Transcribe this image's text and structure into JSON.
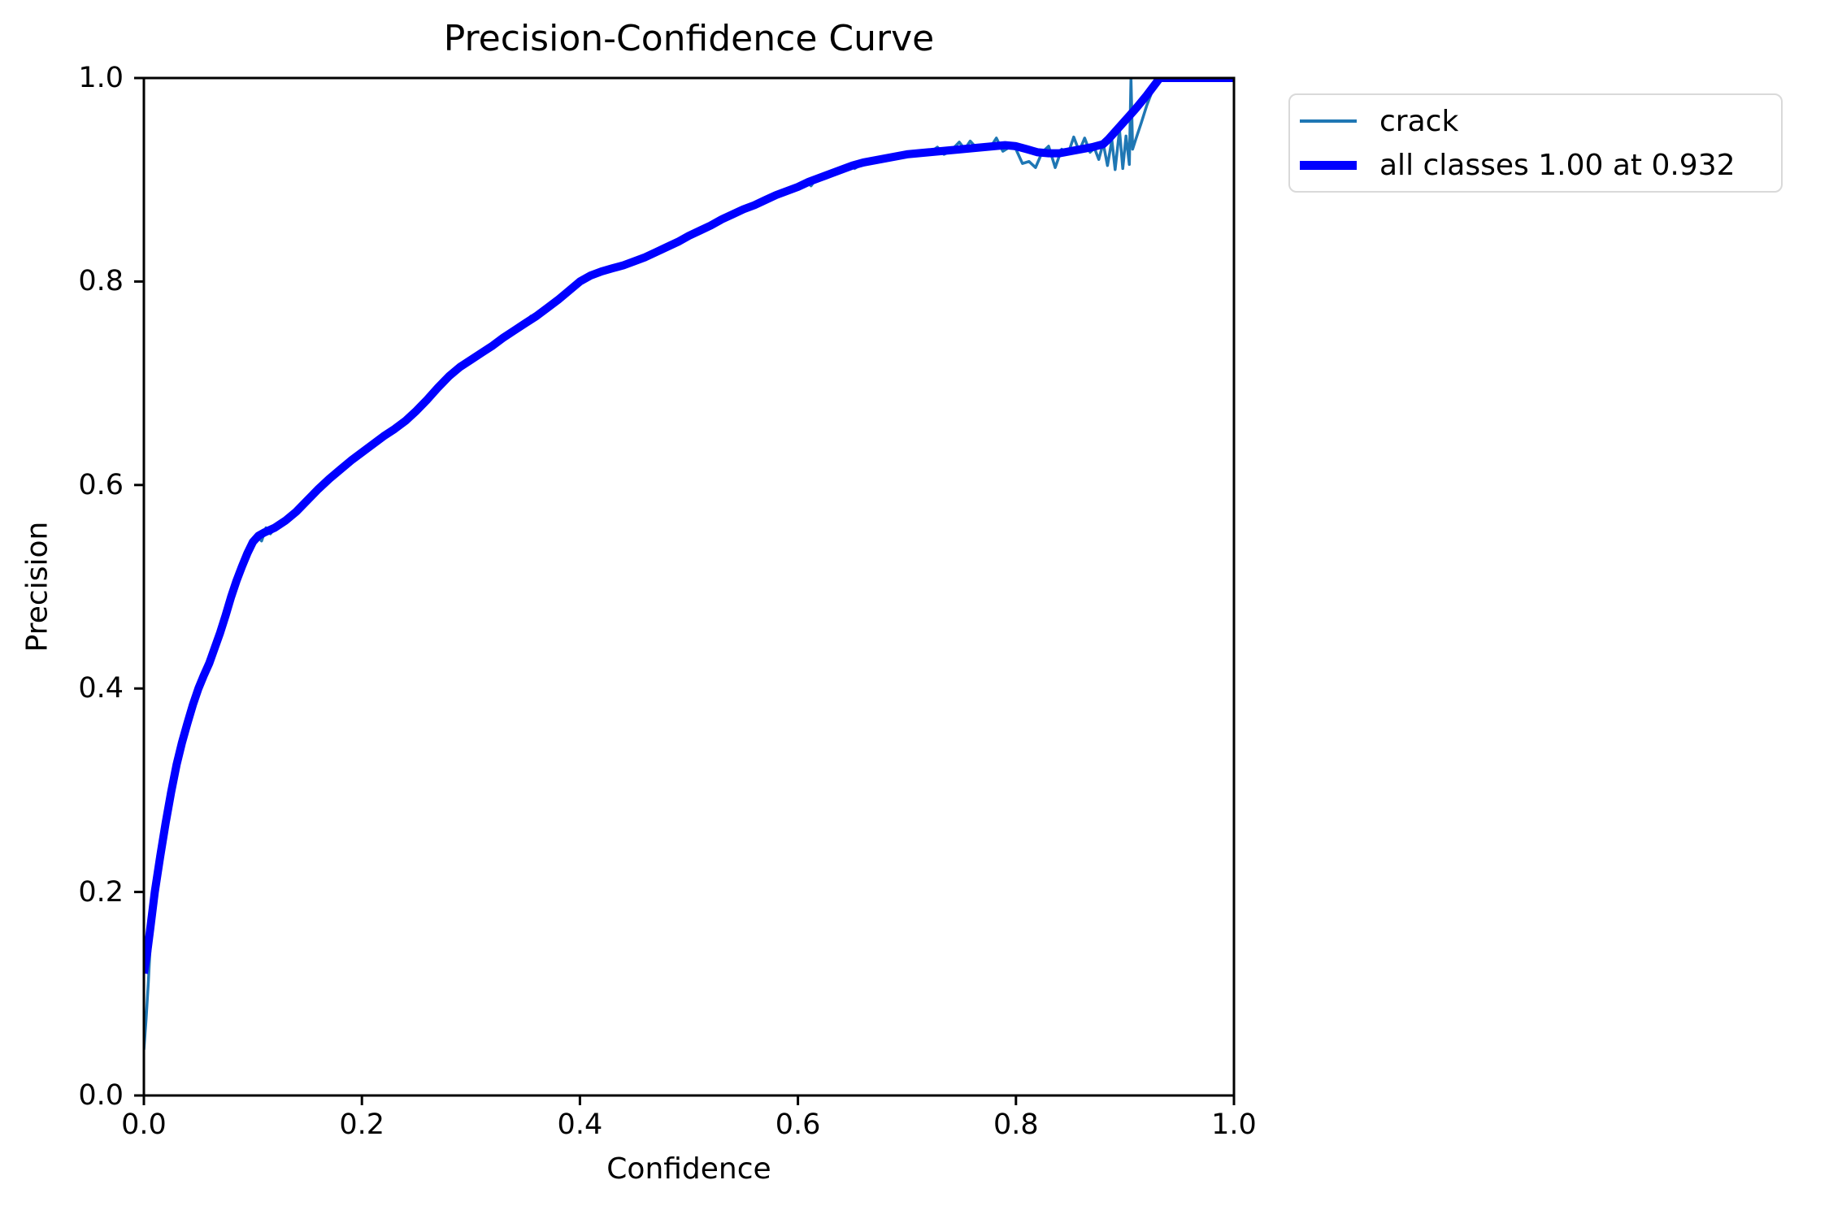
{
  "chart_data": {
    "type": "line",
    "title": "Precision-Confidence Curve",
    "xlabel": "Confidence",
    "ylabel": "Precision",
    "xlim": [
      0.0,
      1.0
    ],
    "ylim": [
      0.0,
      1.0
    ],
    "xticks": [
      "0.0",
      "0.2",
      "0.4",
      "0.6",
      "0.8",
      "1.0"
    ],
    "yticks": [
      "0.0",
      "0.2",
      "0.4",
      "0.6",
      "0.8",
      "1.0"
    ],
    "grid": false,
    "legend_position": "outside-upper-right",
    "axis_color": "#000000",
    "series": [
      {
        "name": "crack",
        "color": "#1f77b4",
        "linewidth": 3.5,
        "points": [
          [
            0.0,
            0.045
          ],
          [
            0.002,
            0.075
          ],
          [
            0.004,
            0.11
          ],
          [
            0.006,
            0.15
          ],
          [
            0.01,
            0.197
          ],
          [
            0.015,
            0.232
          ],
          [
            0.02,
            0.265
          ],
          [
            0.025,
            0.296
          ],
          [
            0.03,
            0.323
          ],
          [
            0.035,
            0.345
          ],
          [
            0.04,
            0.364
          ],
          [
            0.045,
            0.382
          ],
          [
            0.05,
            0.398
          ],
          [
            0.055,
            0.411
          ],
          [
            0.06,
            0.424
          ],
          [
            0.065,
            0.438
          ],
          [
            0.07,
            0.453
          ],
          [
            0.075,
            0.47
          ],
          [
            0.08,
            0.488
          ],
          [
            0.085,
            0.504
          ],
          [
            0.09,
            0.518
          ],
          [
            0.095,
            0.531
          ],
          [
            0.1,
            0.542
          ],
          [
            0.104,
            0.55
          ],
          [
            0.108,
            0.545
          ],
          [
            0.112,
            0.558
          ],
          [
            0.116,
            0.552
          ],
          [
            0.12,
            0.557
          ],
          [
            0.13,
            0.564
          ],
          [
            0.14,
            0.573
          ],
          [
            0.15,
            0.584
          ],
          [
            0.16,
            0.595
          ],
          [
            0.17,
            0.605
          ],
          [
            0.18,
            0.614
          ],
          [
            0.19,
            0.623
          ],
          [
            0.2,
            0.631
          ],
          [
            0.21,
            0.639
          ],
          [
            0.22,
            0.647
          ],
          [
            0.23,
            0.654
          ],
          [
            0.24,
            0.662
          ],
          [
            0.25,
            0.672
          ],
          [
            0.26,
            0.683
          ],
          [
            0.27,
            0.695
          ],
          [
            0.28,
            0.706
          ],
          [
            0.29,
            0.715
          ],
          [
            0.3,
            0.722
          ],
          [
            0.31,
            0.729
          ],
          [
            0.32,
            0.736
          ],
          [
            0.33,
            0.744
          ],
          [
            0.34,
            0.751
          ],
          [
            0.35,
            0.76
          ],
          [
            0.355,
            0.766
          ],
          [
            0.36,
            0.763
          ],
          [
            0.365,
            0.769
          ],
          [
            0.37,
            0.773
          ],
          [
            0.38,
            0.781
          ],
          [
            0.39,
            0.79
          ],
          [
            0.4,
            0.799
          ],
          [
            0.41,
            0.805
          ],
          [
            0.42,
            0.809
          ],
          [
            0.43,
            0.812
          ],
          [
            0.44,
            0.815
          ],
          [
            0.45,
            0.819
          ],
          [
            0.46,
            0.823
          ],
          [
            0.47,
            0.828
          ],
          [
            0.48,
            0.833
          ],
          [
            0.49,
            0.838
          ],
          [
            0.5,
            0.844
          ],
          [
            0.51,
            0.849
          ],
          [
            0.52,
            0.854
          ],
          [
            0.53,
            0.86
          ],
          [
            0.54,
            0.865
          ],
          [
            0.55,
            0.87
          ],
          [
            0.56,
            0.874
          ],
          [
            0.57,
            0.879
          ],
          [
            0.58,
            0.884
          ],
          [
            0.59,
            0.888
          ],
          [
            0.6,
            0.892
          ],
          [
            0.608,
            0.899
          ],
          [
            0.612,
            0.894
          ],
          [
            0.616,
            0.9
          ],
          [
            0.62,
            0.901
          ],
          [
            0.63,
            0.905
          ],
          [
            0.64,
            0.909
          ],
          [
            0.648,
            0.915
          ],
          [
            0.652,
            0.911
          ],
          [
            0.66,
            0.916
          ],
          [
            0.67,
            0.918
          ],
          [
            0.68,
            0.92
          ],
          [
            0.69,
            0.922
          ],
          [
            0.7,
            0.924
          ],
          [
            0.71,
            0.925
          ],
          [
            0.72,
            0.926
          ],
          [
            0.728,
            0.932
          ],
          [
            0.734,
            0.925
          ],
          [
            0.74,
            0.928
          ],
          [
            0.748,
            0.937
          ],
          [
            0.753,
            0.93
          ],
          [
            0.758,
            0.938
          ],
          [
            0.764,
            0.931
          ],
          [
            0.77,
            0.933
          ],
          [
            0.776,
            0.931
          ],
          [
            0.782,
            0.941
          ],
          [
            0.788,
            0.928
          ],
          [
            0.794,
            0.932
          ],
          [
            0.8,
            0.93
          ],
          [
            0.806,
            0.916
          ],
          [
            0.812,
            0.918
          ],
          [
            0.818,
            0.912
          ],
          [
            0.824,
            0.927
          ],
          [
            0.83,
            0.933
          ],
          [
            0.836,
            0.912
          ],
          [
            0.842,
            0.93
          ],
          [
            0.848,
            0.926
          ],
          [
            0.853,
            0.942
          ],
          [
            0.858,
            0.928
          ],
          [
            0.863,
            0.941
          ],
          [
            0.868,
            0.927
          ],
          [
            0.872,
            0.931
          ],
          [
            0.876,
            0.92
          ],
          [
            0.88,
            0.936
          ],
          [
            0.884,
            0.914
          ],
          [
            0.888,
            0.939
          ],
          [
            0.891,
            0.91
          ],
          [
            0.895,
            0.949
          ],
          [
            0.898,
            0.911
          ],
          [
            0.901,
            0.943
          ],
          [
            0.904,
            0.915
          ],
          [
            0.9055,
            1.0
          ],
          [
            0.907,
            0.93
          ],
          [
            0.91,
            0.94
          ],
          [
            0.915,
            0.956
          ],
          [
            0.92,
            0.973
          ],
          [
            0.926,
            0.99
          ],
          [
            0.932,
            1.0
          ],
          [
            1.0,
            1.0
          ]
        ]
      },
      {
        "name": "all classes 1.00 at 0.932",
        "color": "#0000ff",
        "linewidth": 10,
        "points": [
          [
            0.0,
            0.12
          ],
          [
            0.003,
            0.14
          ],
          [
            0.006,
            0.165
          ],
          [
            0.01,
            0.2
          ],
          [
            0.015,
            0.235
          ],
          [
            0.02,
            0.268
          ],
          [
            0.025,
            0.298
          ],
          [
            0.03,
            0.325
          ],
          [
            0.035,
            0.347
          ],
          [
            0.04,
            0.366
          ],
          [
            0.045,
            0.384
          ],
          [
            0.05,
            0.4
          ],
          [
            0.055,
            0.413
          ],
          [
            0.06,
            0.425
          ],
          [
            0.065,
            0.44
          ],
          [
            0.07,
            0.455
          ],
          [
            0.075,
            0.472
          ],
          [
            0.08,
            0.49
          ],
          [
            0.085,
            0.506
          ],
          [
            0.09,
            0.52
          ],
          [
            0.095,
            0.533
          ],
          [
            0.1,
            0.544
          ],
          [
            0.105,
            0.55
          ],
          [
            0.11,
            0.553
          ],
          [
            0.12,
            0.558
          ],
          [
            0.13,
            0.565
          ],
          [
            0.14,
            0.574
          ],
          [
            0.15,
            0.585
          ],
          [
            0.16,
            0.596
          ],
          [
            0.17,
            0.606
          ],
          [
            0.18,
            0.615
          ],
          [
            0.19,
            0.624
          ],
          [
            0.2,
            0.632
          ],
          [
            0.21,
            0.64
          ],
          [
            0.22,
            0.648
          ],
          [
            0.23,
            0.655
          ],
          [
            0.24,
            0.663
          ],
          [
            0.25,
            0.673
          ],
          [
            0.26,
            0.684
          ],
          [
            0.27,
            0.696
          ],
          [
            0.28,
            0.707
          ],
          [
            0.29,
            0.716
          ],
          [
            0.3,
            0.723
          ],
          [
            0.31,
            0.73
          ],
          [
            0.32,
            0.737
          ],
          [
            0.33,
            0.745
          ],
          [
            0.34,
            0.752
          ],
          [
            0.35,
            0.759
          ],
          [
            0.36,
            0.766
          ],
          [
            0.37,
            0.774
          ],
          [
            0.38,
            0.782
          ],
          [
            0.39,
            0.791
          ],
          [
            0.4,
            0.8
          ],
          [
            0.41,
            0.806
          ],
          [
            0.42,
            0.81
          ],
          [
            0.43,
            0.813
          ],
          [
            0.44,
            0.816
          ],
          [
            0.45,
            0.82
          ],
          [
            0.46,
            0.824
          ],
          [
            0.47,
            0.829
          ],
          [
            0.48,
            0.834
          ],
          [
            0.49,
            0.839
          ],
          [
            0.5,
            0.845
          ],
          [
            0.51,
            0.85
          ],
          [
            0.52,
            0.855
          ],
          [
            0.53,
            0.861
          ],
          [
            0.54,
            0.866
          ],
          [
            0.55,
            0.871
          ],
          [
            0.56,
            0.875
          ],
          [
            0.57,
            0.88
          ],
          [
            0.58,
            0.885
          ],
          [
            0.59,
            0.889
          ],
          [
            0.6,
            0.893
          ],
          [
            0.61,
            0.898
          ],
          [
            0.62,
            0.902
          ],
          [
            0.63,
            0.906
          ],
          [
            0.64,
            0.91
          ],
          [
            0.65,
            0.914
          ],
          [
            0.66,
            0.917
          ],
          [
            0.67,
            0.919
          ],
          [
            0.68,
            0.921
          ],
          [
            0.69,
            0.923
          ],
          [
            0.7,
            0.925
          ],
          [
            0.71,
            0.926
          ],
          [
            0.72,
            0.927
          ],
          [
            0.73,
            0.928
          ],
          [
            0.74,
            0.929
          ],
          [
            0.75,
            0.93
          ],
          [
            0.76,
            0.931
          ],
          [
            0.77,
            0.932
          ],
          [
            0.78,
            0.933
          ],
          [
            0.79,
            0.934
          ],
          [
            0.8,
            0.933
          ],
          [
            0.81,
            0.93
          ],
          [
            0.82,
            0.927
          ],
          [
            0.83,
            0.926
          ],
          [
            0.84,
            0.926
          ],
          [
            0.85,
            0.928
          ],
          [
            0.86,
            0.93
          ],
          [
            0.87,
            0.932
          ],
          [
            0.88,
            0.935
          ],
          [
            0.885,
            0.94
          ],
          [
            0.89,
            0.946
          ],
          [
            0.9,
            0.958
          ],
          [
            0.91,
            0.97
          ],
          [
            0.92,
            0.983
          ],
          [
            0.932,
            1.0
          ],
          [
            0.95,
            1.0
          ],
          [
            1.0,
            1.0
          ]
        ]
      }
    ]
  }
}
